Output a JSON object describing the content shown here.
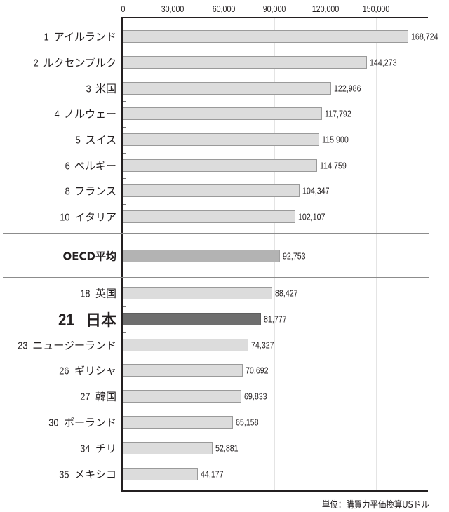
{
  "chart_data": {
    "type": "bar",
    "orientation": "horizontal",
    "title": "",
    "xlabel": "",
    "ylabel": "",
    "xlim": [
      0,
      180000
    ],
    "x_ticks": [
      "0",
      "30,000",
      "60,000",
      "90,000",
      "120,000",
      "150,000"
    ],
    "grid": true,
    "unit_note": "単位：購買力平価換算USドル",
    "categories": [
      {
        "rank": "1",
        "name": "アイルランド",
        "value": 168724,
        "label": "168,724",
        "style": "normal"
      },
      {
        "rank": "2",
        "name": "ルクセンブルク",
        "value": 144273,
        "label": "144,273",
        "style": "normal"
      },
      {
        "rank": "3",
        "name": "米国",
        "value": 122986,
        "label": "122,986",
        "style": "normal"
      },
      {
        "rank": "4",
        "name": "ノルウェー",
        "value": 117792,
        "label": "117,792",
        "style": "normal"
      },
      {
        "rank": "5",
        "name": "スイス",
        "value": 115900,
        "label": "115,900",
        "style": "normal"
      },
      {
        "rank": "6",
        "name": "ベルギー",
        "value": 114759,
        "label": "114,759",
        "style": "normal"
      },
      {
        "rank": "8",
        "name": "フランス",
        "value": 104347,
        "label": "104,347",
        "style": "normal"
      },
      {
        "rank": "10",
        "name": "イタリア",
        "value": 102107,
        "label": "102,107",
        "style": "normal"
      },
      {
        "rank": "",
        "name": "OECD平均",
        "value": 92753,
        "label": "92,753",
        "style": "average"
      },
      {
        "rank": "18",
        "name": "英国",
        "value": 88427,
        "label": "88,427",
        "style": "normal"
      },
      {
        "rank": "21",
        "name": "日本",
        "value": 81777,
        "label": "81,777",
        "style": "highlight"
      },
      {
        "rank": "23",
        "name": "ニュージーランド",
        "value": 74327,
        "label": "74,327",
        "style": "normal"
      },
      {
        "rank": "26",
        "name": "ギリシャ",
        "value": 70692,
        "label": "70,692",
        "style": "normal"
      },
      {
        "rank": "27",
        "name": "韓国",
        "value": 69833,
        "label": "69,833",
        "style": "normal"
      },
      {
        "rank": "30",
        "name": "ポーランド",
        "value": 65158,
        "label": "65,158",
        "style": "normal"
      },
      {
        "rank": "34",
        "name": "チリ",
        "value": 52881,
        "label": "52,881",
        "style": "normal"
      },
      {
        "rank": "35",
        "name": "メキシコ",
        "value": 44177,
        "label": "44,177",
        "style": "normal"
      }
    ],
    "colors": {
      "normal_bar": "#dcdcdc",
      "average_bar": "#b3b3b3",
      "highlight_bar": "#6e6e6e"
    }
  }
}
